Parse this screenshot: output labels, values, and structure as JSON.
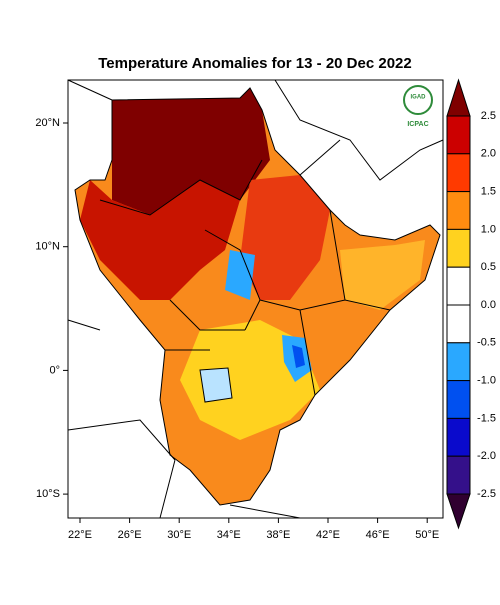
{
  "title": "Temperature Anomalies for 13 - 20 Dec 2022",
  "lat_labels": [
    "20°N",
    "10°N",
    "0°",
    "10°S"
  ],
  "lon_labels": [
    "22°E",
    "26°E",
    "30°E",
    "34°E",
    "38°E",
    "42°E",
    "46°E",
    "50°E"
  ],
  "colorbar": {
    "labels": [
      "2.5",
      "2.0",
      "1.5",
      "1.0",
      "0.5",
      "0.0",
      "-0.5",
      "-1.0",
      "-1.5",
      "-2.0",
      "-2.5"
    ],
    "colors": [
      "#7f0000",
      "#cc0000",
      "#ff3a00",
      "#ff8c10",
      "#ffd21f",
      "#ffffff",
      "#ffffff",
      "#2aa8ff",
      "#0050f0",
      "#0a0acc",
      "#34108a",
      "#300030"
    ]
  },
  "logo": {
    "top": "IGAD",
    "bottom": "ICPAC"
  }
}
